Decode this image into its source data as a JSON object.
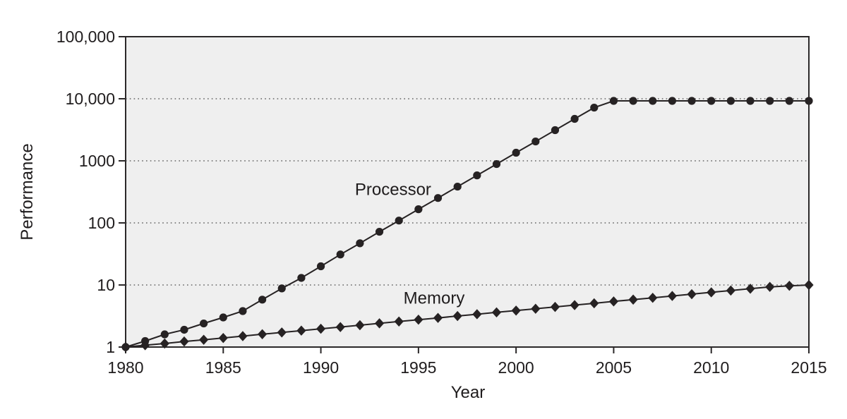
{
  "figure": {
    "description": "Processor versus memory performance gap over time, log scale"
  },
  "colors": {
    "series": "#262223",
    "frame": "#2b2829",
    "grid": "#474747",
    "text": "#1f1c1d",
    "plot_background": "#efefef",
    "page_background": "#ffffff"
  },
  "chart_data": {
    "type": "line",
    "title": "",
    "xlabel": "Year",
    "ylabel": "Performance",
    "x_scale": "linear",
    "y_scale": "log",
    "xlim": [
      1980,
      2015
    ],
    "ylim": [
      1,
      100000
    ],
    "grid": "horizontal-dotted",
    "y_gridlines": [
      10,
      100,
      1000,
      10000
    ],
    "x_ticks": [
      {
        "value": 1980,
        "label": "1980"
      },
      {
        "value": 1985,
        "label": "1985"
      },
      {
        "value": 1990,
        "label": "1990"
      },
      {
        "value": 1995,
        "label": "1995"
      },
      {
        "value": 2000,
        "label": "2000"
      },
      {
        "value": 2005,
        "label": "2005"
      },
      {
        "value": 2010,
        "label": "2010"
      },
      {
        "value": 2015,
        "label": "2015"
      }
    ],
    "y_ticks": [
      {
        "value": 1,
        "label": "1"
      },
      {
        "value": 10,
        "label": "10"
      },
      {
        "value": 100,
        "label": "100"
      },
      {
        "value": 1000,
        "label": "1000"
      },
      {
        "value": 10000,
        "label": "10,000"
      },
      {
        "value": 100000,
        "label": "100,000"
      }
    ],
    "x": [
      1980,
      1981,
      1982,
      1983,
      1984,
      1985,
      1986,
      1987,
      1988,
      1989,
      1990,
      1991,
      1992,
      1993,
      1994,
      1995,
      1996,
      1997,
      1998,
      1999,
      2000,
      2001,
      2002,
      2003,
      2004,
      2005,
      2006,
      2007,
      2008,
      2009,
      2010,
      2011,
      2012,
      2013,
      2014,
      2015
    ],
    "series": [
      {
        "name": "Processor",
        "marker": "circle",
        "label_x": 1993.7,
        "label_y": 280,
        "values": [
          1,
          1.25,
          1.6,
          1.9,
          2.4,
          3.0,
          3.8,
          5.8,
          8.8,
          13,
          20,
          31,
          47,
          72,
          109,
          166,
          252,
          384,
          583,
          887,
          1350,
          2050,
          3120,
          4740,
          7200,
          9240,
          9240,
          9240,
          9240,
          9240,
          9240,
          9240,
          9240,
          9240,
          9240,
          9240
        ]
      },
      {
        "name": "Memory",
        "marker": "diamond",
        "label_x": 1995.8,
        "label_y": 5.0,
        "values": [
          1.0,
          1.07,
          1.14,
          1.23,
          1.31,
          1.4,
          1.5,
          1.61,
          1.72,
          1.84,
          1.97,
          2.1,
          2.25,
          2.41,
          2.58,
          2.76,
          2.95,
          3.16,
          3.38,
          3.62,
          3.87,
          4.14,
          4.43,
          4.74,
          5.07,
          5.43,
          5.81,
          6.21,
          6.65,
          7.11,
          7.61,
          8.14,
          8.71,
          9.32,
          9.7,
          10.0
        ]
      }
    ],
    "legend": "inline-labels"
  }
}
